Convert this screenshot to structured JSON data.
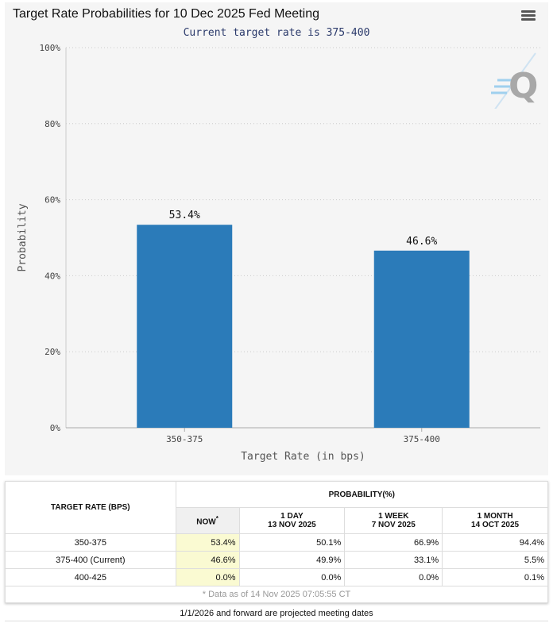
{
  "chart": {
    "title": "Target Rate Probabilities for 10 Dec 2025 Fed Meeting",
    "subtitle": "Current target rate is 375-400",
    "menu_icon": "hamburger-menu-icon",
    "logo_icon": "quikstrike-q-logo"
  },
  "chart_data": {
    "type": "bar",
    "title": "Target Rate Probabilities for 10 Dec 2025 Fed Meeting",
    "subtitle": "Current target rate is 375-400",
    "categories": [
      "350-375",
      "375-400"
    ],
    "values": [
      53.4,
      46.6
    ],
    "data_labels": [
      "53.4%",
      "46.6%"
    ],
    "xlabel": "Target Rate (in bps)",
    "ylabel": "Probability",
    "ylim": [
      0,
      100
    ],
    "yticks": [
      "0%",
      "20%",
      "40%",
      "60%",
      "80%",
      "100%"
    ],
    "ytick_values": [
      0,
      20,
      40,
      60,
      80,
      100
    ],
    "grid": true,
    "bar_color": "#2b7bb9"
  },
  "table": {
    "header_rate": "TARGET RATE (BPS)",
    "header_probability": "PROBABILITY(%)",
    "columns": [
      {
        "line1": "NOW",
        "marker": "*",
        "line2": ""
      },
      {
        "line1": "1 DAY",
        "line2": "13 NOV 2025"
      },
      {
        "line1": "1 WEEK",
        "line2": "7 NOV 2025"
      },
      {
        "line1": "1 MONTH",
        "line2": "14 OCT 2025"
      }
    ],
    "rows": [
      {
        "rate": "350-375",
        "values": [
          "53.4%",
          "50.1%",
          "66.9%",
          "94.4%"
        ]
      },
      {
        "rate": "375-400 (Current)",
        "values": [
          "46.6%",
          "49.9%",
          "33.1%",
          "5.5%"
        ]
      },
      {
        "rate": "400-425",
        "values": [
          "0.0%",
          "0.0%",
          "0.0%",
          "0.1%"
        ]
      }
    ],
    "footnote": "* Data as of 14 Nov 2025 07:05:55 CT"
  },
  "forward_note": "1/1/2026 and forward are projected meeting dates"
}
